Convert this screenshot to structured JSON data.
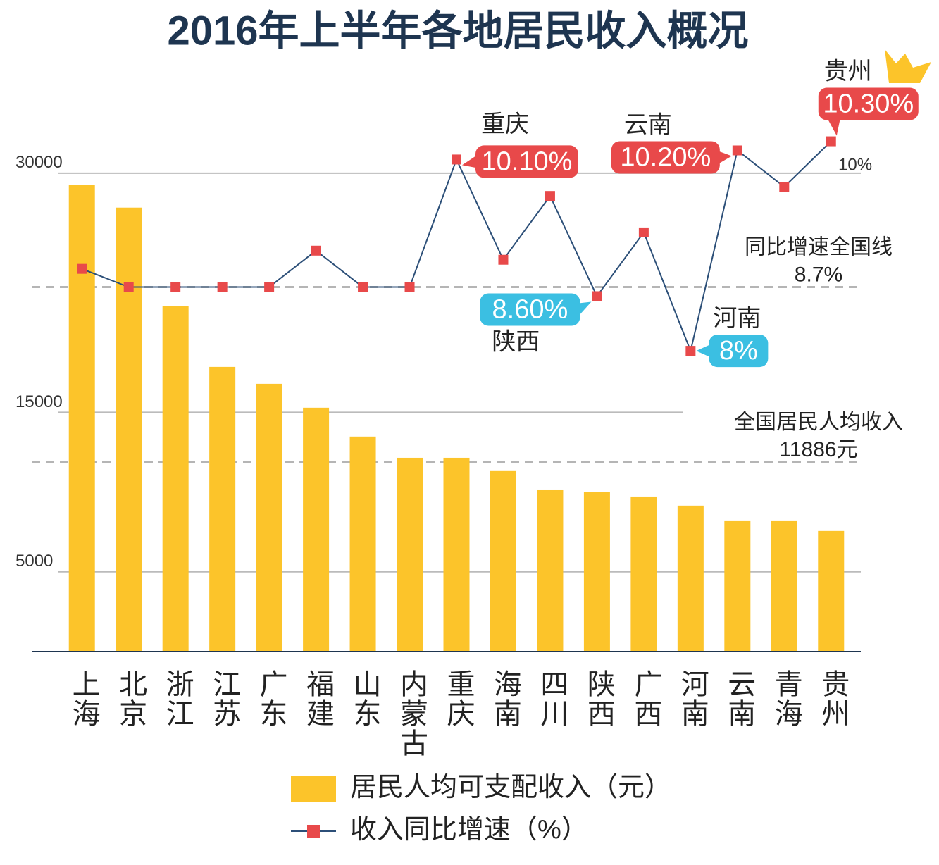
{
  "chart_data": {
    "type": "combo",
    "title": "2016年上半年各地居民收入概况",
    "categories": [
      "上海",
      "北京",
      "浙江",
      "江苏",
      "广东",
      "福建",
      "山东",
      "内蒙古",
      "重庆",
      "海南",
      "四川",
      "陕西",
      "广西",
      "河南",
      "云南",
      "青海",
      "贵州"
    ],
    "series": [
      {
        "name": "居民人均可支配收入（元）",
        "type": "bar",
        "color": "#fcc42a",
        "values": [
          29250,
          27840,
          21650,
          17850,
          16790,
          15290,
          13480,
          12150,
          12150,
          11360,
          10160,
          9990,
          9720,
          9150,
          8220,
          8220,
          7560
        ]
      },
      {
        "name": "收入同比增速（%）",
        "type": "line",
        "axis": "y2",
        "color": "#2c4f78",
        "marker_color": "#e8494a",
        "values": [
          8.9,
          8.7,
          8.7,
          8.7,
          8.7,
          9.1,
          8.7,
          8.7,
          10.1,
          9.0,
          9.7,
          8.6,
          9.3,
          8.0,
          10.2,
          9.8,
          10.3
        ],
        "value_labels": [
          null,
          null,
          null,
          null,
          null,
          null,
          null,
          null,
          "10.10%",
          null,
          null,
          "8.60%",
          null,
          "8%",
          "10.20%",
          null,
          "10.30%"
        ]
      }
    ],
    "ylim": [
      0,
      36000
    ],
    "yticks": [
      5000,
      15000,
      30000
    ],
    "y2lim": [
      4.7,
      11
    ],
    "y2ticks": [
      {
        "value": 10,
        "label": "10%"
      }
    ],
    "reference_lines": [
      {
        "label": "同比增速全国线",
        "value_label": "8.7%",
        "value": 8.7,
        "axis": "y2"
      },
      {
        "label": "全国居民人均收入",
        "value_label": "11886元",
        "value": 11886
      }
    ],
    "grid": true
  }
}
